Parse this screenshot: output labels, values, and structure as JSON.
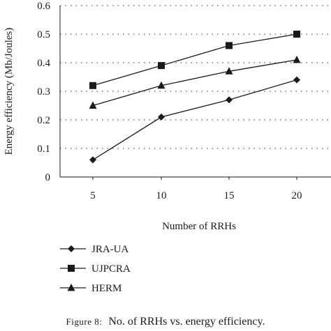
{
  "chart_data": {
    "type": "line",
    "x": [
      5,
      10,
      15,
      20
    ],
    "xlabel": "Number of RRHs",
    "ylabel": "Energy efficiency (Mb/Joules)",
    "ylim": [
      0,
      0.6
    ],
    "yticks": [
      "0",
      "0.1",
      "0.2",
      "0.3",
      "0.4",
      "0.5",
      "0.6"
    ],
    "xticks": [
      "5",
      "10",
      "15",
      "20"
    ],
    "grid": "horizontal dotted",
    "legend_position": "bottom-left, below plot",
    "series": [
      {
        "name": "JRA-UA",
        "marker": "diamond",
        "values": [
          0.06,
          0.21,
          0.27,
          0.34
        ]
      },
      {
        "name": "UJPCRA",
        "marker": "square",
        "values": [
          0.32,
          0.39,
          0.46,
          0.5
        ]
      },
      {
        "name": "HERM",
        "marker": "triangle",
        "values": [
          0.25,
          0.32,
          0.37,
          0.41
        ]
      }
    ]
  },
  "caption": {
    "prefix": "Figure 8:",
    "text": "No. of RRHs vs. energy efficiency."
  },
  "colors": {
    "line": "#1a1a1a",
    "grid": "#555555"
  }
}
